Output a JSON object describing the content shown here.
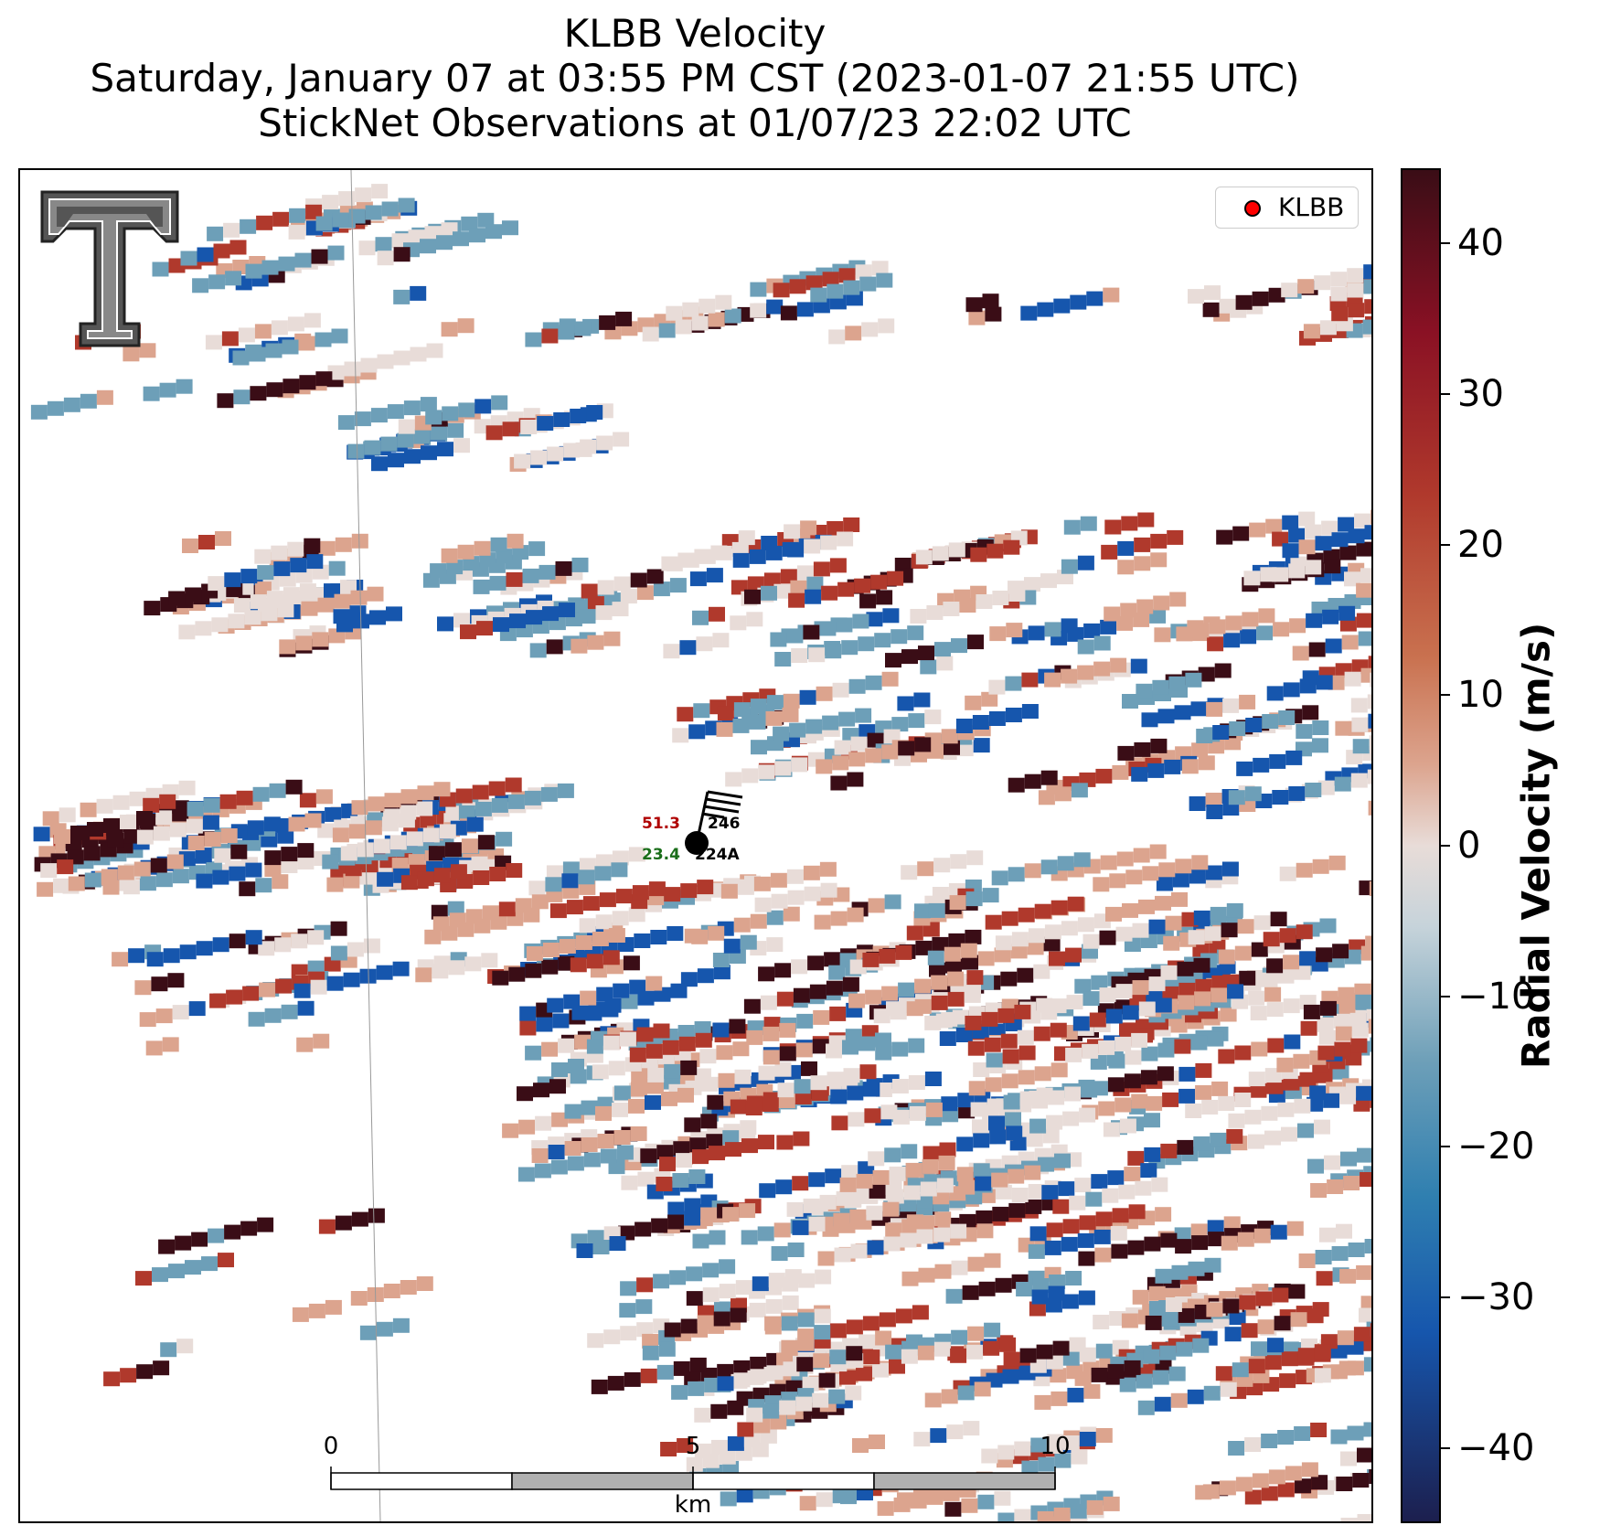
{
  "header": {
    "title": "KLBB Velocity",
    "subtitle": "Saturday, January 07 at 03:55 PM CST (2023-01-07 21:55 UTC)",
    "obs_line": "StickNet Observations at 01/07/23 22:02 UTC"
  },
  "legend": {
    "label": "KLBB",
    "marker_color": "#ff0000"
  },
  "station_obs": {
    "wind_value": "51.3",
    "wind_value_color": "#b00000",
    "temp_value": "23.4",
    "temp_value_color": "#1a6e1a",
    "station_id_top": "246",
    "station_id_bottom": "224A"
  },
  "scalebar": {
    "ticks": [
      "0",
      "5",
      "10"
    ],
    "unit": "km"
  },
  "colorbar": {
    "title": "Radial Velocity (m/s)",
    "ticks": [
      "40",
      "30",
      "20",
      "10",
      "0",
      "−10",
      "−20",
      "−30",
      "−40"
    ],
    "range": [
      -45,
      45
    ]
  },
  "colors": {
    "strong_inbound": "#1c1f4e",
    "inbound": "#1656ad",
    "weak_inbound": "#6d9fb8",
    "near_zero": "#e8dcd8",
    "weak_outbound": "#dca48e",
    "outbound": "#b0392c",
    "strong_outbound": "#3a0d16"
  },
  "logo": {
    "name": "Texas Tech Double T"
  }
}
